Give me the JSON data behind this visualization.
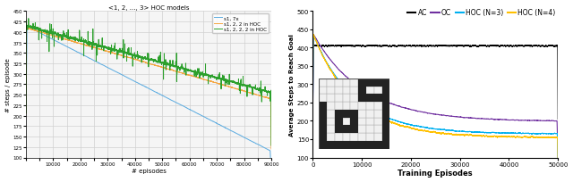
{
  "left_title": "<1, 2, ..., 3> HOC models",
  "left_xlabel": "# episodes",
  "left_ylabel": "# steps / episode",
  "left_ylim": [
    100,
    450
  ],
  "left_xlim": [
    0,
    90000
  ],
  "left_legend": [
    {
      "label": "s1, 7x",
      "color": "#5aabe0"
    },
    {
      "label": "s1, 2, 2 in HOC",
      "color": "#f5a742"
    },
    {
      "label": "s1, 2, 2, 2 in HOC",
      "color": "#2ca02c"
    }
  ],
  "right_xlabel": "Training Episodes",
  "right_ylabel": "Average Steps to Reach Goal",
  "right_ylim": [
    100,
    500
  ],
  "right_xlim": [
    0,
    50000
  ],
  "right_xticks": [
    0,
    10000,
    20000,
    30000,
    40000,
    50000
  ],
  "right_yticks": [
    100,
    150,
    200,
    250,
    300,
    350,
    400,
    450,
    500
  ],
  "right_legend": [
    {
      "label": "AC",
      "color": "#000000"
    },
    {
      "label": "OC",
      "color": "#7030a0"
    },
    {
      "label": "HOC (N=3)",
      "color": "#00b0f0"
    },
    {
      "label": "HOC (N=4)",
      "color": "#ffc000"
    }
  ],
  "bg_color": "#ffffff",
  "left_grid_color": "#d0d0d0",
  "left_bg_color": "#f5f5f5"
}
